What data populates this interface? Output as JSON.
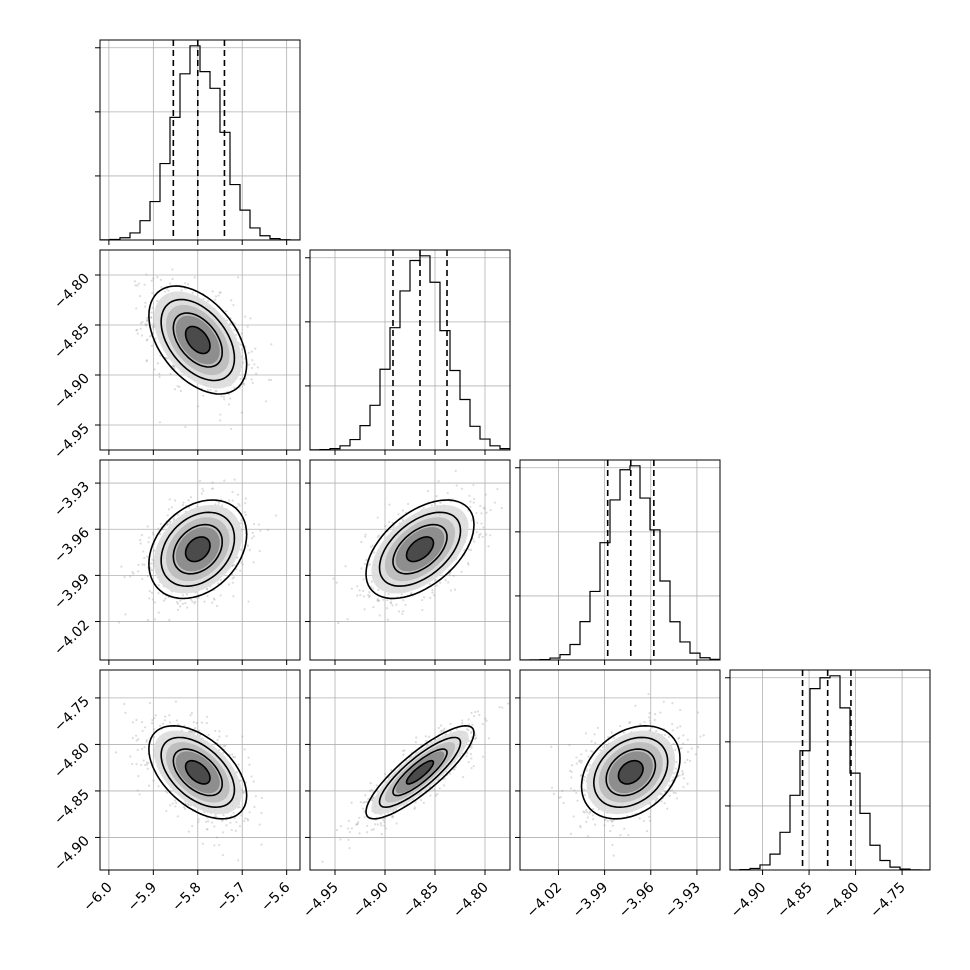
{
  "chart_data": {
    "type": "corner",
    "parameters": [
      {
        "ticks": [
          -6.0,
          -5.9,
          -5.8,
          -5.7,
          -5.6
        ],
        "tick_labels": [
          "−6.0",
          "−5.9",
          "−5.8",
          "−5.7",
          "−5.6"
        ],
        "range": [
          -6.02,
          -5.57
        ],
        "mean": -5.8,
        "sd": 0.055,
        "quantiles": [
          -5.855,
          -5.8,
          -5.74
        ]
      },
      {
        "ticks": [
          -4.95,
          -4.9,
          -4.85,
          -4.8
        ],
        "tick_labels": [
          "−4.95",
          "−4.90",
          "−4.85",
          "−4.80"
        ],
        "range": [
          -4.975,
          -4.775
        ],
        "mean": -4.865,
        "sd": 0.027,
        "quantiles": [
          -4.892,
          -4.865,
          -4.838
        ]
      },
      {
        "ticks": [
          -4.02,
          -3.99,
          -3.96,
          -3.93
        ],
        "tick_labels": [
          "−4.02",
          "−3.99",
          "−3.96",
          "−3.93"
        ],
        "range": [
          -4.045,
          -3.915
        ],
        "mean": -3.973,
        "sd": 0.016,
        "quantiles": [
          -3.988,
          -3.973,
          -3.958
        ]
      },
      {
        "ticks": [
          -4.9,
          -4.85,
          -4.8,
          -4.75
        ],
        "tick_labels": [
          "−4.90",
          "−4.85",
          "−4.80",
          "−4.75"
        ],
        "range": [
          -4.935,
          -4.72
        ],
        "mean": -4.83,
        "sd": 0.025,
        "quantiles": [
          -4.857,
          -4.83,
          -4.805
        ]
      }
    ],
    "correlations": {
      "1-0": -0.45,
      "2-0": 0.3,
      "2-1": 0.5,
      "3-0": -0.5,
      "3-1": 0.85,
      "3-2": 0.3
    },
    "contour_levels_sigma": [
      0.5,
      1.0,
      1.5,
      2.0
    ],
    "histogram_bins": 20,
    "colors": {
      "line": "#000000",
      "grid": "#b0b0b0",
      "points": "#9a9a9a"
    },
    "grid": true,
    "title": "",
    "axis_labels": [
      "",
      "",
      "",
      ""
    ]
  }
}
